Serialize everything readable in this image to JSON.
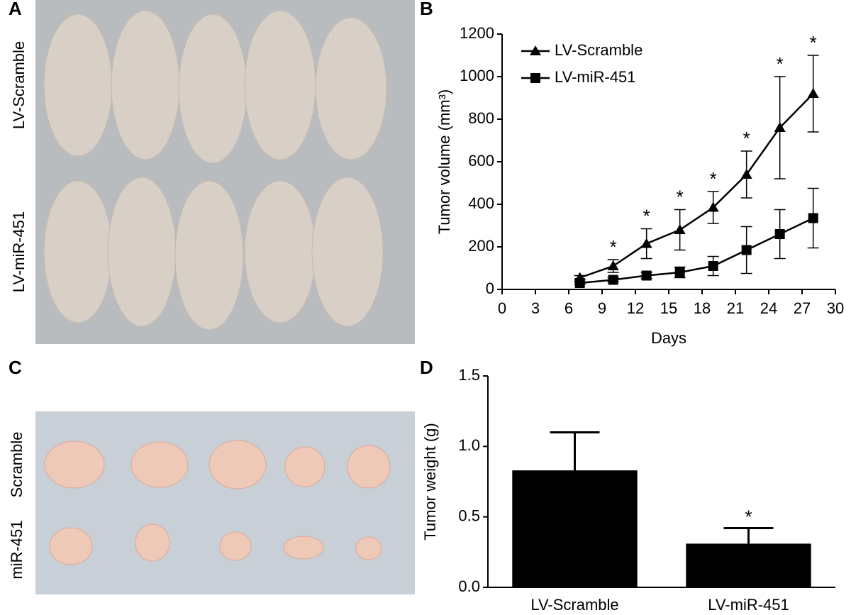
{
  "panel_labels": [
    "A",
    "B",
    "C",
    "D"
  ],
  "photo_labels": {
    "A": [
      "LV-Scramble",
      "LV-miR-451"
    ],
    "C": [
      "Scramble",
      "miR-451"
    ]
  },
  "chart_data": [
    {
      "type": "line",
      "xlabel": "Days",
      "ylabel": "Tumor volume (mm³)",
      "x": [
        7,
        10,
        13,
        16,
        19,
        22,
        25,
        28
      ],
      "series": [
        {
          "name": "LV-Scramble",
          "color": "#000000",
          "marker": "triangle",
          "values": [
            55,
            110,
            215,
            280,
            385,
            540,
            760,
            920
          ],
          "errors": [
            10,
            30,
            70,
            95,
            75,
            110,
            240,
            180
          ],
          "annotations": [
            null,
            "*",
            "*",
            "*",
            "*",
            "*",
            "*",
            "*"
          ]
        },
        {
          "name": "LV-miR-451",
          "color": "#000000",
          "marker": "square",
          "values": [
            30,
            45,
            65,
            80,
            110,
            185,
            260,
            335
          ],
          "errors": [
            5,
            10,
            15,
            25,
            45,
            110,
            115,
            140
          ]
        }
      ],
      "xlim": [
        0,
        30
      ],
      "xticks": [
        0,
        3,
        6,
        9,
        12,
        15,
        18,
        21,
        24,
        27,
        30
      ],
      "ylim": [
        0,
        1200
      ],
      "yticks": [
        0,
        200,
        400,
        600,
        800,
        1000,
        1200
      ],
      "legend": "top-left"
    },
    {
      "type": "bar",
      "ylabel": "Tumor weight (g)",
      "categories": [
        "LV-Scramble",
        "LV-miR-451"
      ],
      "values": [
        0.83,
        0.31
      ],
      "errors": [
        0.27,
        0.11
      ],
      "annotations": [
        null,
        "*"
      ],
      "color": "#000000",
      "ylim": [
        0,
        1.5
      ],
      "yticks": [
        {
          "value": 0,
          "label": "0.0"
        },
        0.5,
        {
          "value": 1,
          "label": "1.0"
        },
        1.5
      ]
    }
  ]
}
